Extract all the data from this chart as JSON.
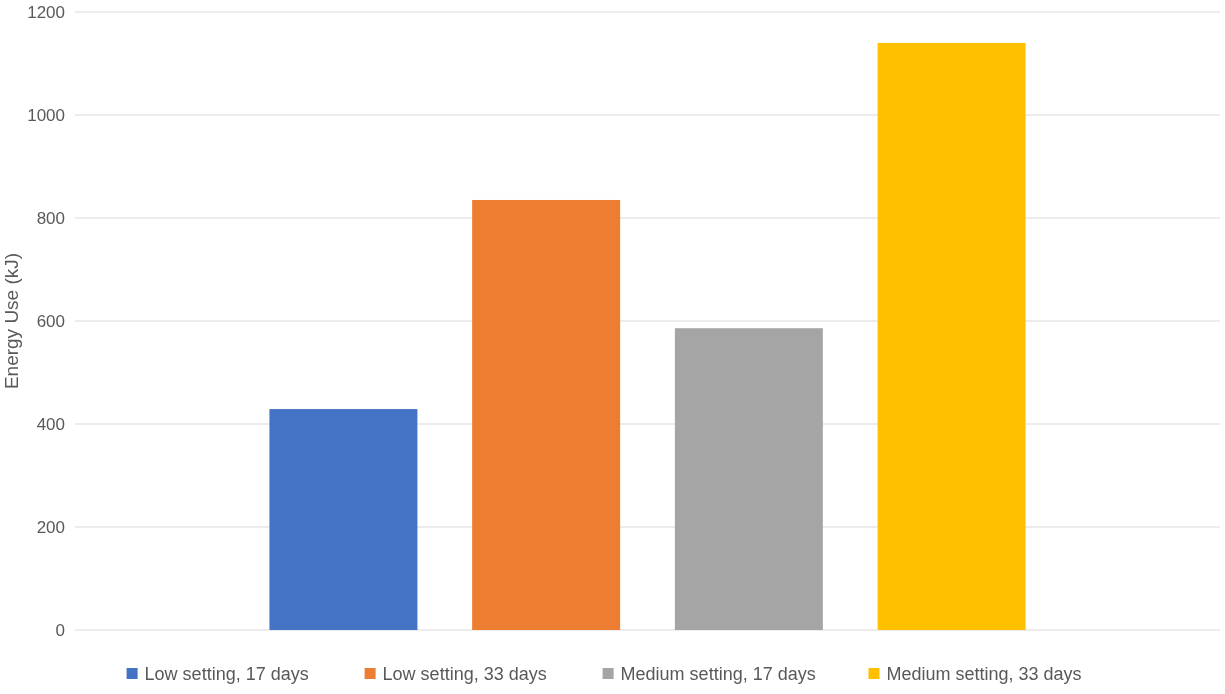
{
  "chart_data": {
    "type": "bar",
    "ylabel": "Energy Use (kJ)",
    "categories": [
      null
    ],
    "series": [
      {
        "name": "Low setting, 17 days",
        "color": "#4472c4",
        "values": [
          429
        ]
      },
      {
        "name": "Low setting, 33 days",
        "color": "#ed7d31",
        "values": [
          835
        ]
      },
      {
        "name": "Medium setting, 17 days",
        "color": "#a5a5a5",
        "values": [
          586
        ]
      },
      {
        "name": "Medium setting, 33 days",
        "color": "#ffc000",
        "values": [
          1140
        ]
      }
    ],
    "ylim": [
      0,
      1200
    ],
    "yticks": [
      0,
      200,
      400,
      600,
      800,
      1000,
      1200
    ],
    "grid": "y",
    "legend": "bottom"
  }
}
